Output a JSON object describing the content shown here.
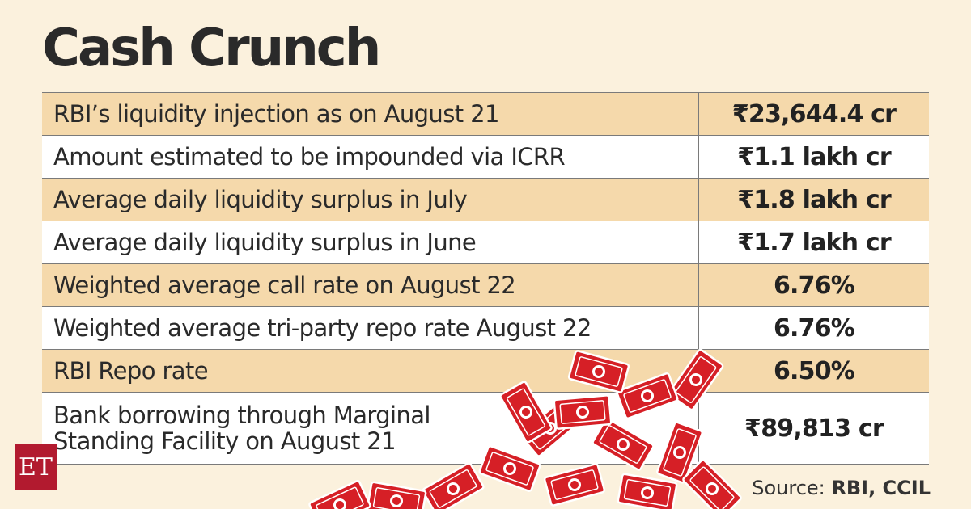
{
  "title": "Cash Crunch",
  "rows": [
    {
      "label": "RBI’s liquidity injection as on August 21",
      "value": "₹23,644.4 cr"
    },
    {
      "label": "Amount estimated to be impounded via ICRR",
      "value": "₹1.1 lakh cr"
    },
    {
      "label": "Average daily liquidity surplus in July",
      "value": "₹1.8 lakh cr"
    },
    {
      "label": "Average daily liquidity surplus in June",
      "value": "₹1.7 lakh cr"
    },
    {
      "label": "Weighted average call rate on August 22",
      "value": "6.76%"
    },
    {
      "label": "Weighted average tri-party repo rate August 22",
      "value": "6.76%"
    },
    {
      "label": "RBI Repo rate",
      "value": "6.50%"
    },
    {
      "label_line1": "Bank borrowing through Marginal",
      "label_line2": "Standing Facility on August 21",
      "value": "₹89,813 cr"
    }
  ],
  "source": {
    "prefix": "Source: ",
    "names": "RBI, CCIL"
  },
  "logo": "ET",
  "colors": {
    "shade": "#f5d9ab",
    "background": "#fbf1dd",
    "money": "#d61f26",
    "logo": "#b21a2f"
  }
}
